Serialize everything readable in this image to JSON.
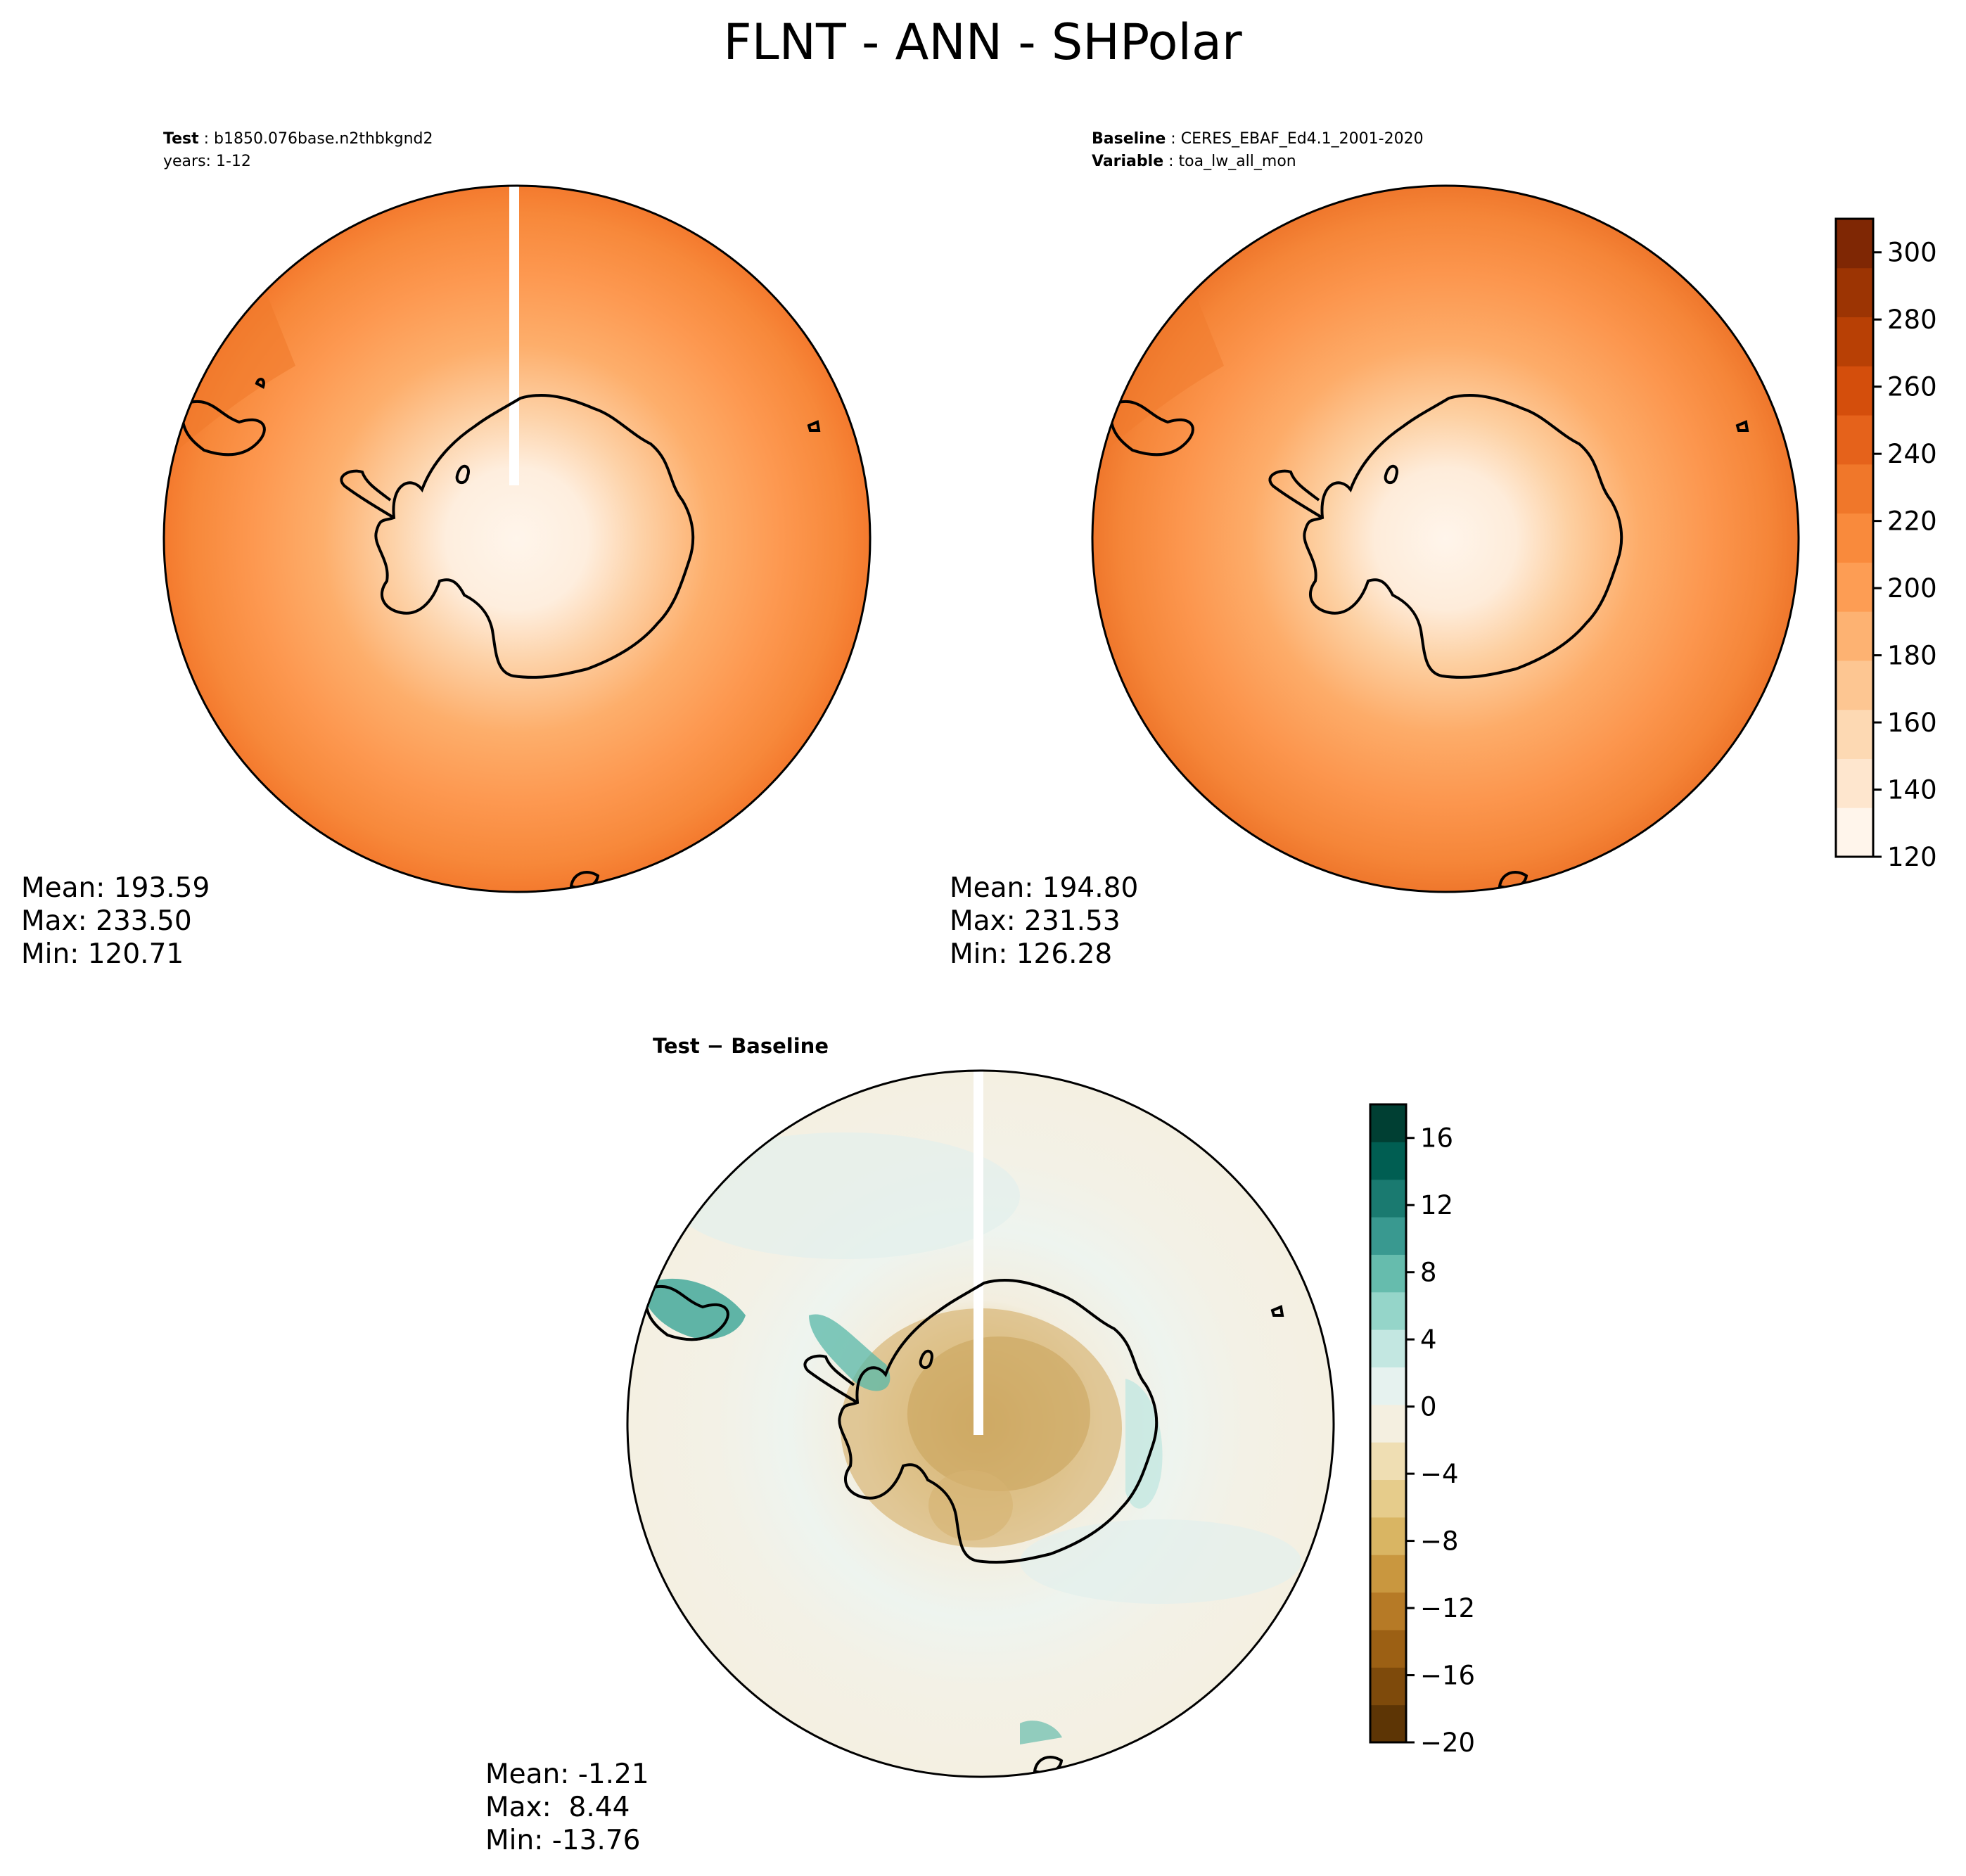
{
  "title": "FLNT - ANN - SHPolar",
  "panels": [
    {
      "id": "test",
      "header": [
        {
          "key": "Test",
          "value": "b1850.076base.n2thbkgnd2"
        },
        {
          "key": "",
          "value": "years: 1-12"
        }
      ],
      "stats": {
        "mean": "Mean: 193.59",
        "max": "Max: 233.50",
        "min": "Min: 120.71"
      }
    },
    {
      "id": "baseline",
      "header": [
        {
          "key": "Baseline",
          "value": "CERES_EBAF_Ed4.1_2001-2020"
        },
        {
          "key": "Variable",
          "value": "toa_lw_all_mon"
        }
      ],
      "stats": {
        "mean": "Mean: 194.80",
        "max": "Max: 231.53",
        "min": "Min: 126.28"
      }
    },
    {
      "id": "diff",
      "title": "Test − Baseline",
      "stats": {
        "mean": "Mean: -1.21",
        "max": "Max:  8.44",
        "min": "Min: -13.76"
      }
    }
  ],
  "colorbars": {
    "main": {
      "ticks": [
        "120",
        "140",
        "160",
        "180",
        "200",
        "220",
        "240",
        "260",
        "280",
        "300"
      ],
      "range": [
        120,
        310
      ],
      "colors": [
        "#fff5eb",
        "#fee6ce",
        "#fdd9b3",
        "#fdc692",
        "#fdb272",
        "#fd9d54",
        "#f98a3c",
        "#f0772a",
        "#e5621b",
        "#d44e0c",
        "#b84005",
        "#9c3403",
        "#7f2704"
      ]
    },
    "diff": {
      "ticks": [
        "16",
        "12",
        "8",
        "4",
        "0",
        "−4",
        "−8",
        "−12",
        "−16",
        "−20"
      ],
      "range": [
        -20,
        18
      ],
      "colors": [
        "#5d3505",
        "#7e4a0b",
        "#9c6014",
        "#b67a26",
        "#c9973f",
        "#d9b563",
        "#e6cc8b",
        "#efdeb3",
        "#f4efe0",
        "#e6f2ef",
        "#c3e7e1",
        "#95d5c9",
        "#66bcad",
        "#399990",
        "#1a7a70",
        "#005e52",
        "#003f33"
      ]
    },
    "main_style": "Oranges",
    "diff_style": "BrBG"
  },
  "chart_data": [
    {
      "type": "heatmap",
      "title": "Test",
      "projection": "South polar stereographic",
      "stats": {
        "mean": 193.59,
        "max": 233.5,
        "min": 120.71
      }
    },
    {
      "type": "heatmap",
      "title": "Baseline",
      "projection": "South polar stereographic",
      "stats": {
        "mean": 194.8,
        "max": 231.53,
        "min": 126.28
      },
      "colorbar": {
        "range": [
          120,
          310
        ],
        "ticks": [
          120,
          140,
          160,
          180,
          200,
          220,
          240,
          260,
          280,
          300
        ]
      }
    },
    {
      "type": "heatmap",
      "title": "Test − Baseline",
      "projection": "South polar stereographic",
      "stats": {
        "mean": -1.21,
        "max": 8.44,
        "min": -13.76
      },
      "colorbar": {
        "range": [
          -20,
          18
        ],
        "ticks": [
          16,
          12,
          8,
          4,
          0,
          -4,
          -8,
          -12,
          -16,
          -20
        ]
      }
    }
  ]
}
